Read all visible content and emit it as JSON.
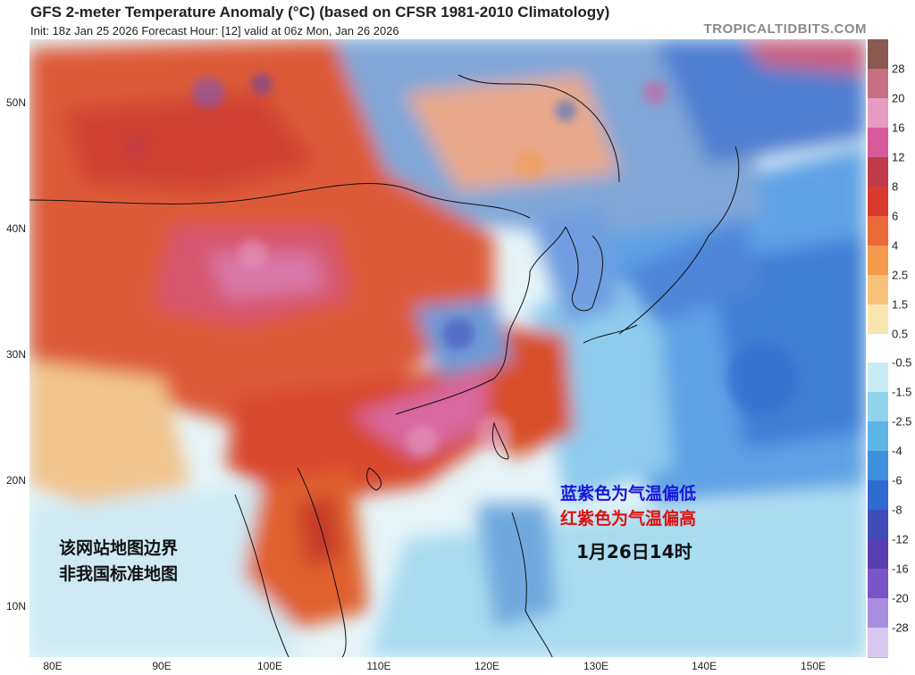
{
  "header": {
    "title": "GFS 2-meter Temperature Anomaly (°C) (based on CFSR 1981-2010 Climatology)",
    "subtitle": "Init: 18z Jan 25 2026   Forecast Hour: [12]   valid at 06z Mon, Jan 26 2026",
    "brand": "TROPICALTIDBITS.COM"
  },
  "axes": {
    "lat_labels": [
      "50N",
      "40N",
      "30N",
      "20N",
      "10N"
    ],
    "lon_labels": [
      "80E",
      "90E",
      "100E",
      "110E",
      "120E",
      "130E",
      "140E",
      "150E"
    ]
  },
  "colorbar": {
    "labels": [
      "28",
      "20",
      "16",
      "12",
      "8",
      "6",
      "4",
      "2.5",
      "1.5",
      "0.5",
      "-0.5",
      "-1.5",
      "-2.5",
      "-4",
      "-6",
      "-8",
      "-12",
      "-16",
      "-20",
      "-28"
    ],
    "colors": [
      "#8a5a50",
      "#c76f83",
      "#e59cc0",
      "#d85a9a",
      "#c03a4a",
      "#d93a2e",
      "#ea6a3a",
      "#f39a4c",
      "#f6c27a",
      "#f8e6b0",
      "#ffffff",
      "#c9ecf4",
      "#8fd3ec",
      "#5bb6e6",
      "#3f8fdc",
      "#2f6ad0",
      "#3f4db8",
      "#5a3fb0",
      "#7a55c8",
      "#a98ee0",
      "#d8c8f0"
    ]
  },
  "annotations": {
    "blue_note": "蓝紫色为气温偏低",
    "red_note": "红紫色为气温偏高",
    "date_note": "1月26日14时",
    "disclaimer_line1": "该网站地图边界",
    "disclaimer_line2": "非我国标准地图"
  }
}
